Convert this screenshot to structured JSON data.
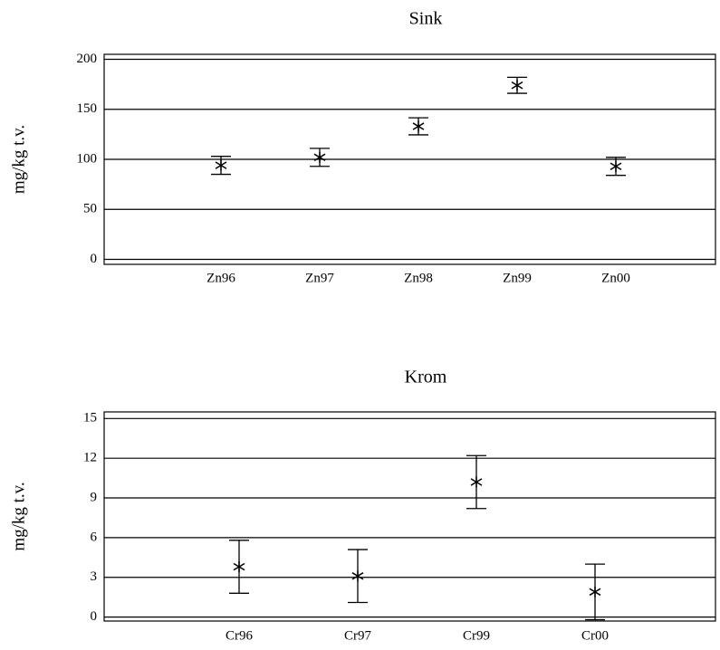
{
  "chart_data": [
    {
      "type": "errorbar",
      "title": "Sink",
      "y_label": "mg/kg t.v.",
      "categories": [
        "Zn96",
        "Zn97",
        "Zn98",
        "Zn99",
        "Zn00"
      ],
      "values": [
        94,
        102,
        133,
        174,
        93
      ],
      "errors": [
        9,
        9,
        8.5,
        8,
        9
      ],
      "color": "#000000",
      "ylim": [
        -5,
        205
      ],
      "yticks": [
        0,
        50,
        100,
        150,
        200
      ],
      "grid": true
    },
    {
      "type": "errorbar",
      "title": "Krom",
      "y_label": "mg/kg t.v.",
      "categories": [
        "Cr96",
        "Cr97",
        "Cr99",
        "Cr00"
      ],
      "values": [
        3.8,
        3.1,
        10.2,
        1.9
      ],
      "errors": [
        2,
        2,
        2,
        2.1
      ],
      "color": "#000000",
      "ylim": [
        -0.3,
        15.5
      ],
      "yticks": [
        0,
        3,
        6,
        9,
        12,
        15
      ],
      "grid": true
    }
  ]
}
